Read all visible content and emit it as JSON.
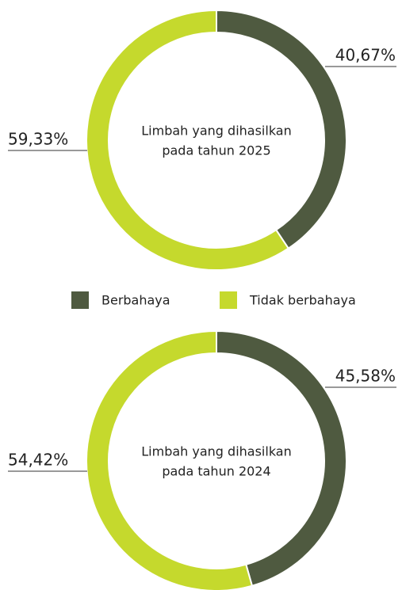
{
  "chart_data": [
    {
      "type": "pie",
      "title": [
        "Limbah yang dihasilkan",
        "pada tahun 2025"
      ],
      "categories": [
        "Berbahaya",
        "Tidak berbahaya"
      ],
      "values": [
        40.67,
        59.33
      ],
      "value_labels": [
        "40,67%",
        "59,33%"
      ],
      "colors": [
        "#4f5a40",
        "#c5d92d"
      ]
    },
    {
      "type": "pie",
      "title": [
        "Limbah yang dihasilkan",
        "pada tahun 2024"
      ],
      "categories": [
        "Berbahaya",
        "Tidak berbahaya"
      ],
      "values": [
        45.58,
        54.42
      ],
      "value_labels": [
        "45,58%",
        "54,42%"
      ],
      "colors": [
        "#4f5a40",
        "#c5d92d"
      ]
    }
  ]
}
